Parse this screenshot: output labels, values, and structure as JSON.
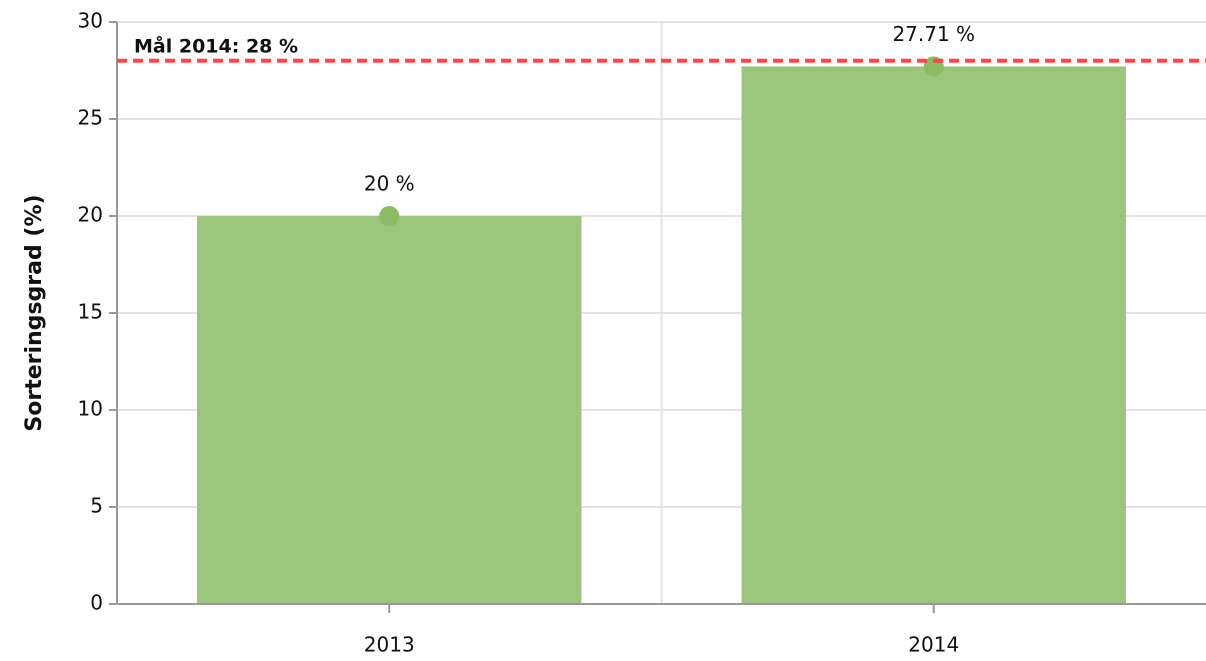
{
  "chart_data": {
    "type": "bar",
    "y_label": "Sorteringsgrad (%)",
    "categories": [
      "2013",
      "2014"
    ],
    "values": [
      20,
      27.71
    ],
    "value_labels": [
      "20 %",
      "27.71 %"
    ],
    "color": "#9bc47d",
    "marker_color": "#8cbb63",
    "ylim": [
      0,
      30
    ],
    "yticks": [
      0,
      5,
      10,
      15,
      20,
      25,
      30
    ],
    "grid": true,
    "target": {
      "value": 28,
      "label": "Mål 2014: 28 %",
      "color": "#f24b4b"
    }
  }
}
